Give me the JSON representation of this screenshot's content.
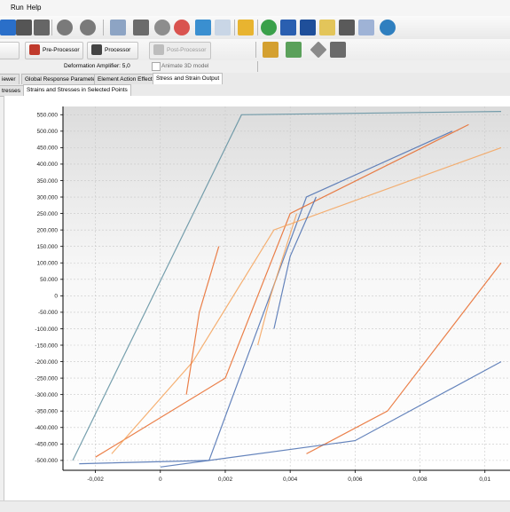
{
  "menu": {
    "run": "Run",
    "help": "Help"
  },
  "toolbar": {
    "icons": [
      "open-icon",
      "copy-icon",
      "paste-icon",
      "undo-icon",
      "redo-icon",
      "tree-icon",
      "stop-icon",
      "settings-gear-icon",
      "settings-gear-alt-icon",
      "calculator-icon",
      "grid-icon",
      "brush-icon",
      "help-icon",
      "books-icon",
      "books-alt-icon",
      "folder-icon",
      "camera-icon",
      "link-icon",
      "globe-icon"
    ],
    "preprocessor_label": "Pre-Processor",
    "processor_label": "Processor",
    "postprocessor_label": "Post-Processor",
    "deformation_amplifier_label": "Deformation Amplifier:",
    "deformation_amplifier_value": "5,0",
    "animate_label": "Animate 3D model"
  },
  "tabs_top": [
    {
      "label": "iewer",
      "active": false
    },
    {
      "label": "Global Response Parameters",
      "active": false
    },
    {
      "label": "Element Action Effects",
      "active": false
    },
    {
      "label": "Stress and Strain Output",
      "active": true
    }
  ],
  "tabs_sub": [
    {
      "label": "tresses",
      "active": false
    },
    {
      "label": "Strains and Stresses in Selected Points",
      "active": true
    }
  ],
  "colors": {
    "blue": "#4a6fb0",
    "orange": "#e86a2a",
    "light_orange": "#f5a35c",
    "teal": "#5f8fa0",
    "grid": "#c8c8c8"
  },
  "chart_data": {
    "type": "line",
    "title": "",
    "xlabel": "",
    "ylabel": "",
    "xlim": [
      -0.003,
      0.0108
    ],
    "ylim": [
      -530,
      575
    ],
    "xticks": [
      -0.002,
      0,
      0.002,
      0.004,
      0.006,
      0.008,
      0.01
    ],
    "xtick_labels": [
      "-0,002",
      "0",
      "0,002",
      "0,004",
      "0,006",
      "0,008",
      "0,01"
    ],
    "yticks": [
      550,
      500,
      450,
      400,
      350,
      300,
      250,
      200,
      150,
      100,
      50,
      0,
      -50,
      -100,
      -150,
      -200,
      -250,
      -300,
      -350,
      -400,
      -450,
      -500
    ],
    "ytick_labels": [
      "550.000",
      "500.000",
      "450.000",
      "400.000",
      "350.000",
      "300.000",
      "250.000",
      "200.000",
      "150.000",
      "100.000",
      "50.000",
      "0",
      "-50.000",
      "-100.000",
      "-150.000",
      "-200.000",
      "-250.000",
      "-300.000",
      "-350.000",
      "-400.000",
      "-450.000",
      "-500.000"
    ],
    "grid": true,
    "series": [
      {
        "values": [
          [
            -0.0027,
            -500
          ],
          [
            0.0025,
            550
          ],
          [
            0.0105,
            560
          ]
        ],
        "color": "#5f8fa0"
      },
      {
        "values": [
          [
            -0.0025,
            -510
          ],
          [
            0.0015,
            -500
          ],
          [
            0.0045,
            300
          ],
          [
            0.009,
            500
          ]
        ],
        "color": "#4a6fb0"
      },
      {
        "values": [
          [
            -0.002,
            -490
          ],
          [
            0.002,
            -250
          ],
          [
            0.004,
            250
          ],
          [
            0.0095,
            520
          ]
        ],
        "color": "#e86a2a"
      },
      {
        "values": [
          [
            -0.0015,
            -480
          ],
          [
            0.001,
            -200
          ],
          [
            0.0035,
            200
          ],
          [
            0.0105,
            450
          ]
        ],
        "color": "#f5a35c"
      },
      {
        "values": [
          [
            0.0008,
            -300
          ],
          [
            0.0012,
            -50
          ],
          [
            0.0018,
            150
          ]
        ],
        "color": "#e86a2a"
      },
      {
        "values": [
          [
            0.0035,
            -100
          ],
          [
            0.004,
            120
          ],
          [
            0.0048,
            300
          ]
        ],
        "color": "#4a6fb0"
      },
      {
        "values": [
          [
            0.003,
            -150
          ],
          [
            0.0034,
            0
          ],
          [
            0.0042,
            250
          ]
        ],
        "color": "#f5a35c"
      },
      {
        "values": [
          [
            0.0045,
            -480
          ],
          [
            0.007,
            -350
          ],
          [
            0.0105,
            100
          ]
        ],
        "color": "#e86a2a"
      },
      {
        "values": [
          [
            0.0,
            -520
          ],
          [
            0.006,
            -440
          ],
          [
            0.0105,
            -200
          ]
        ],
        "color": "#4a6fb0"
      }
    ]
  }
}
